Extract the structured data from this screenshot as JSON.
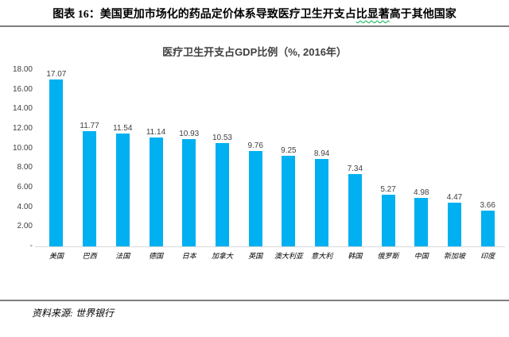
{
  "header": {
    "title_pre": "图表 16：美国更加市场化的药品定价体系导致医疗卫生开支占",
    "title_wavy": "比显著",
    "title_post": "高于其他国家",
    "spellcheck_underline_color": "#00B050"
  },
  "chart_data": {
    "type": "bar",
    "title": "医疗卫生开支占GDP比例（%, 2016年）",
    "categories": [
      "美国",
      "巴西",
      "法国",
      "德国",
      "日本",
      "加拿大",
      "英国",
      "澳大利亚",
      "意大利",
      "韩国",
      "俄罗斯",
      "中国",
      "新加坡",
      "印度"
    ],
    "values": [
      17.07,
      11.77,
      11.54,
      11.14,
      10.93,
      10.53,
      9.76,
      9.25,
      8.94,
      7.34,
      5.27,
      4.98,
      4.47,
      3.66
    ],
    "ylim": [
      0,
      18
    ],
    "yticks": [
      {
        "value": 18,
        "label": "18.00"
      },
      {
        "value": 16,
        "label": "16.00"
      },
      {
        "value": 14,
        "label": "14.00"
      },
      {
        "value": 12,
        "label": "12.00"
      },
      {
        "value": 10,
        "label": "10.00"
      },
      {
        "value": 8,
        "label": "8.00"
      },
      {
        "value": 6,
        "label": "6.00"
      },
      {
        "value": 4,
        "label": "4.00"
      },
      {
        "value": 2,
        "label": "2.00"
      },
      {
        "value": 0,
        "label": "-"
      }
    ],
    "grid": false,
    "legend": false,
    "bar_color": "#00B0F0",
    "label_color": "#404040"
  },
  "footer": {
    "source": "资料来源: 世界银行"
  }
}
